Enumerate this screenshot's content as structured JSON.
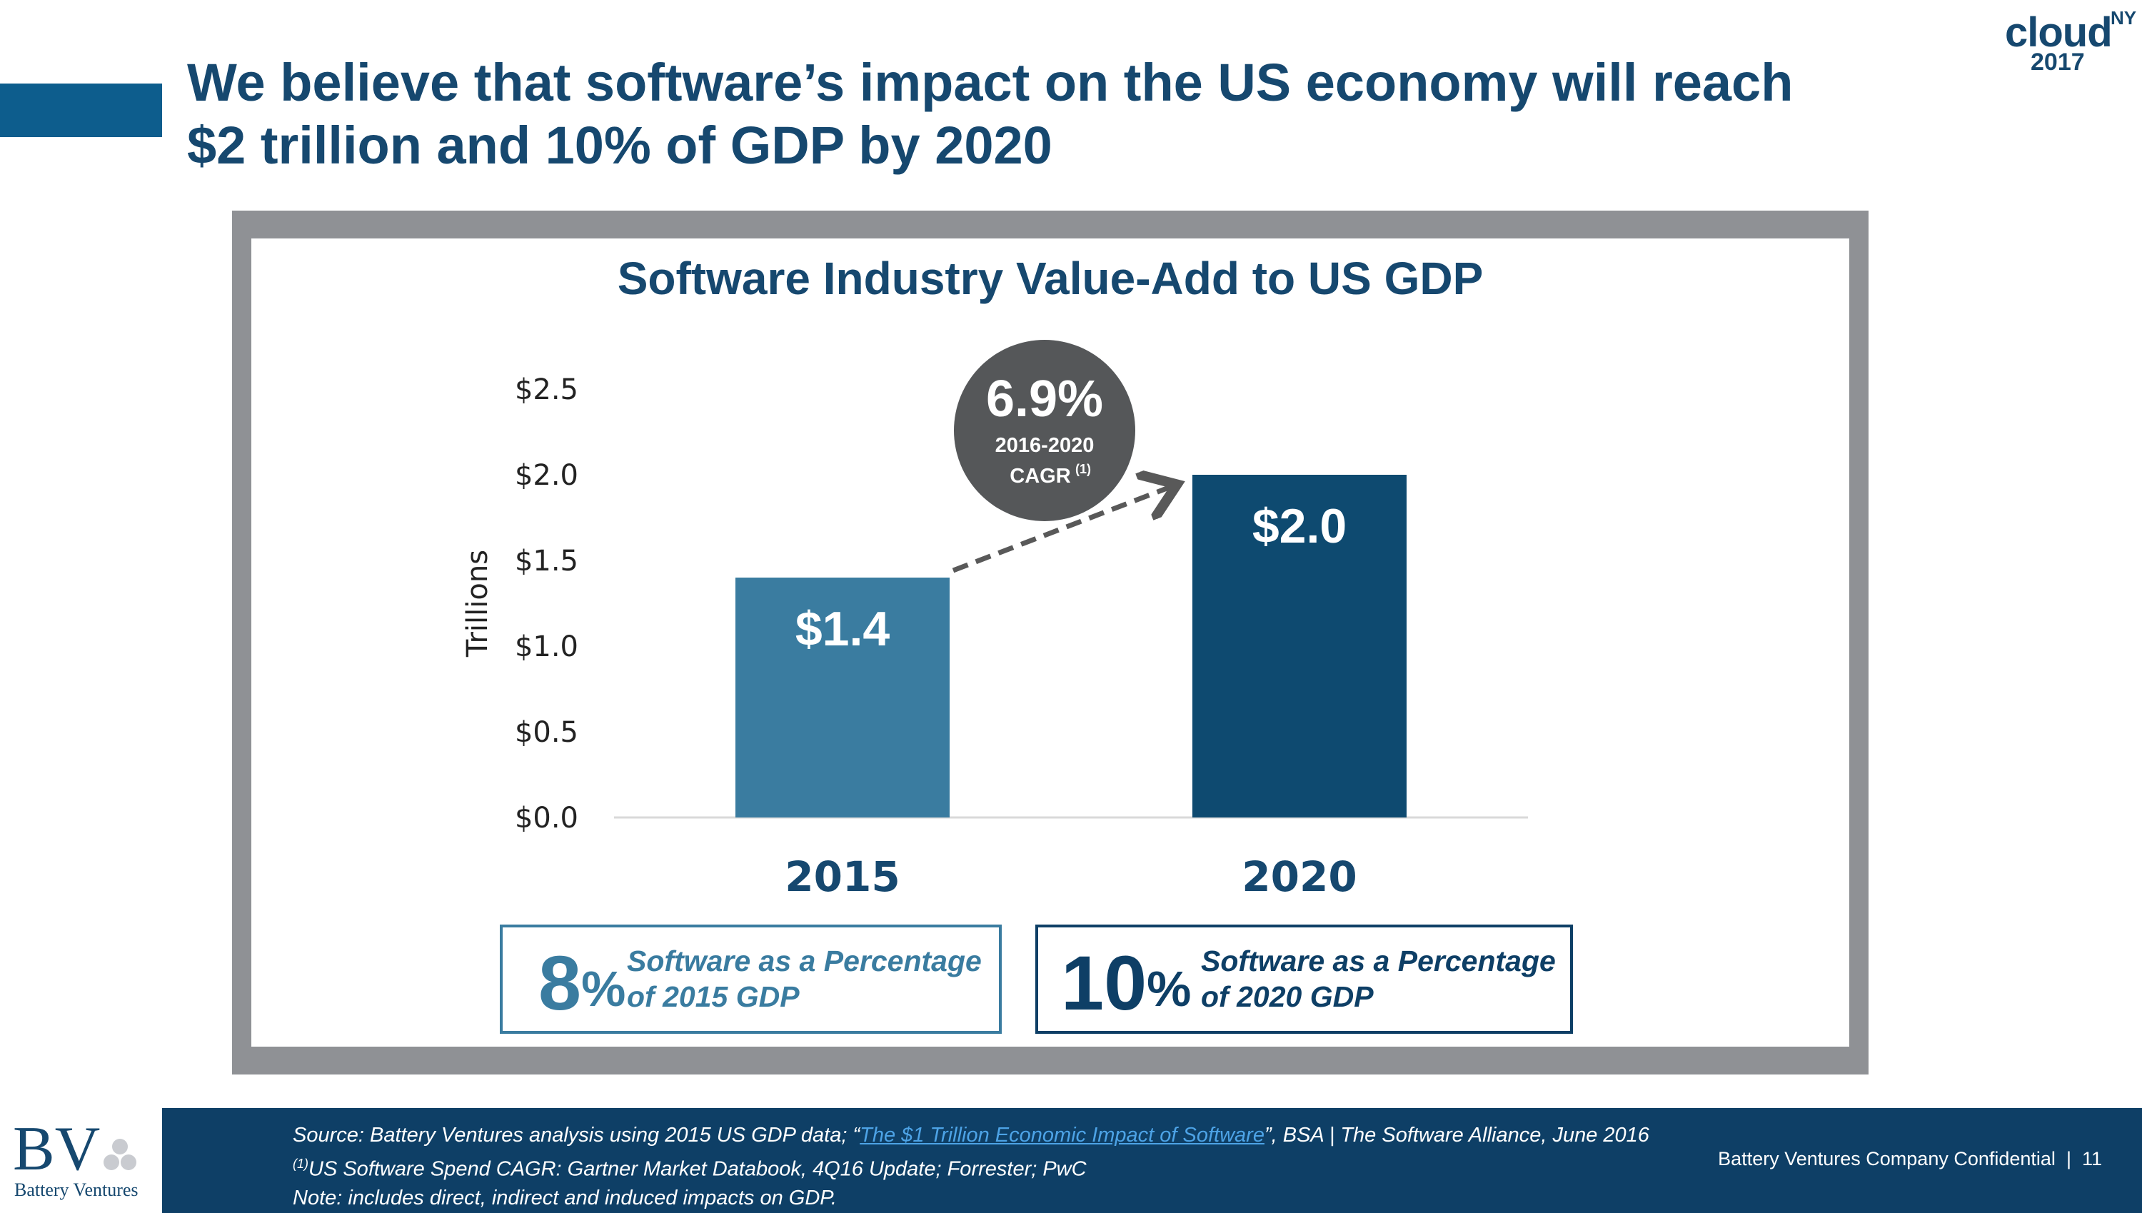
{
  "slide": {
    "title_line1": "We believe that software’s impact on the US economy will reach",
    "title_line2": "$2 trillion and 10% of GDP by 2020"
  },
  "event_logo": {
    "word": "cloud",
    "sup": "NY",
    "year": "2017"
  },
  "chart_data": {
    "type": "bar",
    "title": "Software Industry Value-Add to US GDP",
    "categories": [
      "2015",
      "2020"
    ],
    "values": [
      1.4,
      2.0
    ],
    "data_labels": [
      "$1.4",
      "$2.0"
    ],
    "bar_colors": [
      "#3a7ca0",
      "#0e4a70"
    ],
    "ylabel": "Trillions",
    "ylim": [
      0,
      2.5
    ],
    "yticks": [
      0,
      0.5,
      1.0,
      1.5,
      2.0,
      2.5
    ],
    "ytick_labels": [
      "$0.0",
      "$0.5",
      "$1.0",
      "$1.5",
      "$2.0",
      "$2.5"
    ],
    "grid": false,
    "annotation": {
      "value": "6.9%",
      "line1": "2016-2020",
      "line2": "CAGR",
      "sup": "(1)"
    }
  },
  "stats": [
    {
      "number": "8",
      "unit": "%",
      "label_line1": "Software as a Percentage",
      "label_line2": "of 2015 GDP"
    },
    {
      "number": "10",
      "unit": "%",
      "label_line1": "Software as a Percentage",
      "label_line2": "of 2020 GDP"
    }
  ],
  "footer": {
    "source_prefix": "Source: Battery Ventures analysis using 2015 US GDP data; “",
    "source_link": "The $1 Trillion Economic Impact of Software",
    "source_suffix": "”, BSA | The Software Alliance, June 2016",
    "note1_sup": "(1)",
    "note1": "US Software Spend CAGR: Gartner Market Databook, 4Q16 Update; Forrester; PwC",
    "note2": "Note: includes direct, indirect and induced impacts on GDP.",
    "confidential": "Battery Ventures Company Confidential",
    "page_number": "11"
  },
  "brand": {
    "mark": "BV",
    "name": "Battery Ventures"
  },
  "colors": {
    "title": "#16486f",
    "accent": "#0d5d8d",
    "frame": "#8f9195",
    "footer": "#0e3f66"
  }
}
